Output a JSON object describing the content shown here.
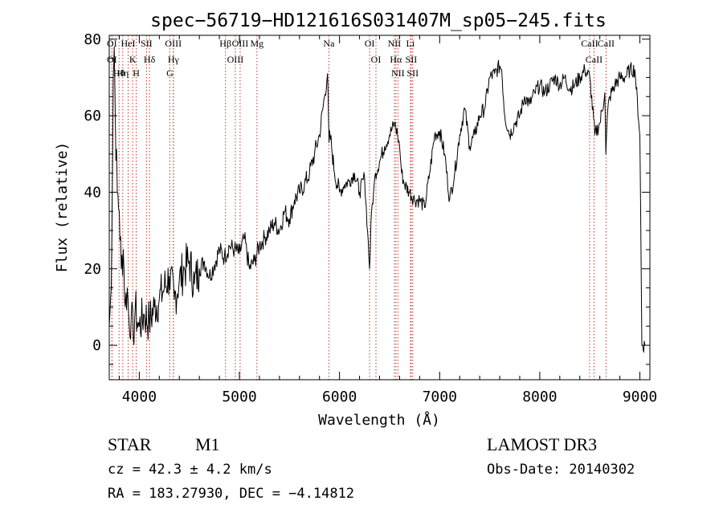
{
  "chart_data": {
    "type": "line",
    "title": "spec−56719−HD121616S031407M_sp05−245.fits",
    "xlabel": "Wavelength (Å)",
    "ylabel": "Flux (relative)",
    "xlim": [
      3700,
      9100
    ],
    "ylim": [
      -9,
      81
    ],
    "x_ticks": [
      4000,
      5000,
      6000,
      7000,
      8000,
      9000
    ],
    "y_ticks": [
      0,
      20,
      40,
      60,
      80
    ],
    "grid": false,
    "series": [
      {
        "x": [
          3700,
          3720,
          3740,
          3750,
          3760,
          3780,
          3800,
          3820,
          3840,
          3860,
          3880,
          3900,
          3920,
          3940,
          3960,
          3980,
          4000,
          4050,
          4100,
          4150,
          4200,
          4250,
          4300,
          4350,
          4400,
          4450,
          4500,
          4550,
          4600,
          4650,
          4700,
          4750,
          4800,
          4850,
          4900,
          4950,
          5000,
          5050,
          5100,
          5150,
          5200,
          5250,
          5300,
          5350,
          5400,
          5450,
          5500,
          5550,
          5600,
          5650,
          5700,
          5750,
          5800,
          5850,
          5880,
          5895,
          5905,
          5920,
          5950,
          6000,
          6050,
          6100,
          6150,
          6200,
          6250,
          6280,
          6300,
          6320,
          6340,
          6360,
          6400,
          6450,
          6500,
          6550,
          6580,
          6600,
          6620,
          6650,
          6700,
          6750,
          6800,
          6850,
          6900,
          6950,
          7000,
          7050,
          7100,
          7150,
          7200,
          7250,
          7300,
          7350,
          7400,
          7450,
          7500,
          7550,
          7600,
          7620,
          7650,
          7700,
          7750,
          7800,
          7850,
          7900,
          7950,
          8000,
          8050,
          8100,
          8150,
          8200,
          8250,
          8300,
          8350,
          8400,
          8450,
          8500,
          8550,
          8600,
          8650,
          8660,
          8680,
          8700,
          8750,
          8800,
          8850,
          8900,
          8950,
          9000,
          9020,
          9050
        ],
        "y": [
          5,
          15,
          70,
          78,
          60,
          40,
          35,
          20,
          25,
          10,
          15,
          5,
          8,
          2,
          10,
          6,
          5,
          8,
          6,
          10,
          12,
          15,
          18,
          12,
          17,
          20,
          22,
          16,
          20,
          22,
          18,
          21,
          25,
          23,
          26,
          25,
          24,
          28,
          20,
          22,
          26,
          28,
          30,
          32,
          30,
          35,
          33,
          38,
          40,
          42,
          45,
          50,
          55,
          65,
          71,
          53,
          55,
          52,
          45,
          40,
          42,
          43,
          45,
          40,
          44,
          30,
          20,
          35,
          40,
          45,
          48,
          52,
          55,
          58,
          55,
          52,
          45,
          42,
          40,
          38,
          38,
          36,
          45,
          55,
          56,
          50,
          38,
          45,
          55,
          62,
          52,
          55,
          60,
          62,
          70,
          71,
          73,
          72,
          60,
          55,
          58,
          60,
          65,
          63,
          66,
          68,
          66,
          68,
          70,
          68,
          70,
          67,
          68,
          70,
          72,
          70,
          55,
          58,
          66,
          50,
          62,
          65,
          68,
          70,
          70,
          72,
          72,
          55,
          0,
          0
        ],
        "color": "#000000"
      }
    ],
    "line_markers": [
      {
        "label": "OI",
        "x": 3727
      },
      {
        "label": "OI",
        "x": 3727
      },
      {
        "label": "Hθ",
        "x": 3798
      },
      {
        "label": "Hη",
        "x": 3835
      },
      {
        "label": "HeI",
        "x": 3889
      },
      {
        "label": "K",
        "x": 3934
      },
      {
        "label": "H",
        "x": 3969
      },
      {
        "label": "SII",
        "x": 4072
      },
      {
        "label": "Hδ",
        "x": 4102
      },
      {
        "label": "OIII",
        "x": 4340
      },
      {
        "label": "Hγ",
        "x": 4341
      },
      {
        "label": "G",
        "x": 4305
      },
      {
        "label": "Hβ",
        "x": 4861
      },
      {
        "label": "OIII",
        "x": 4959
      },
      {
        "label": "OIII",
        "x": 5007
      },
      {
        "label": "Mg",
        "x": 5175
      },
      {
        "label": "Na",
        "x": 5894
      },
      {
        "label": "OI",
        "x": 6300
      },
      {
        "label": "OI",
        "x": 6364
      },
      {
        "label": "NII",
        "x": 6548
      },
      {
        "label": "Hα",
        "x": 6563
      },
      {
        "label": "NII",
        "x": 6583
      },
      {
        "label": "Li",
        "x": 6708
      },
      {
        "label": "SII",
        "x": 6716
      },
      {
        "label": "SII",
        "x": 6731
      },
      {
        "label": "CaII",
        "x": 8498
      },
      {
        "label": "CaII",
        "x": 8542
      },
      {
        "label": "CaII",
        "x": 8662
      }
    ]
  },
  "info": {
    "object_class": "STAR",
    "subclass": "M1",
    "survey": "LAMOST DR3",
    "cz": "cz = 42.3 ± 4.2 km/s",
    "obs_date": "Obs-Date: 20140302",
    "radec": "RA = 183.27930, DEC =  −4.14812"
  }
}
